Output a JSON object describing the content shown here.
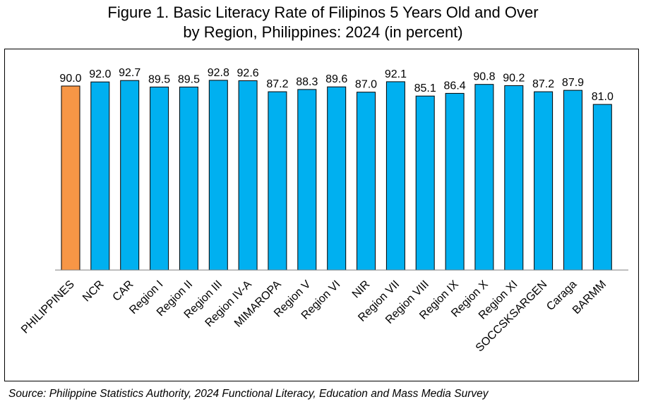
{
  "title_line1": "Figure 1. Basic Literacy Rate of Filipinos 5 Years Old and Over",
  "title_line2": "by Region, Philippines: 2024 (in percent)",
  "source": "Source: Philippine Statistics Authority, 2024 Functional Literacy, Education and Mass Media Survey",
  "colors": {
    "national": "#F79646",
    "region": "#00B0F0",
    "outline": "#000000"
  },
  "chart_data": {
    "type": "bar",
    "categories": [
      "PHILIPPINES",
      "NCR",
      "CAR",
      "Region I",
      "Region II",
      "Region III",
      "Region IV-A",
      "MIMAROPA",
      "Region V",
      "Region VI",
      "NIR",
      "Region VII",
      "Region VIII",
      "Region IX",
      "Region X",
      "Region XI",
      "SOCCSKSARGEN",
      "Caraga",
      "BARMM"
    ],
    "values": [
      90.0,
      92.0,
      92.7,
      89.5,
      89.5,
      92.8,
      92.6,
      87.2,
      88.3,
      89.6,
      87.0,
      92.1,
      85.1,
      86.4,
      90.8,
      90.2,
      87.2,
      87.9,
      81.0
    ],
    "data_labels": [
      "90.0",
      "92.0",
      "92.7",
      "89.5",
      "89.5",
      "92.8",
      "92.6",
      "87.2",
      "88.3",
      "89.6",
      "87.0",
      "92.1",
      "85.1",
      "86.4",
      "90.8",
      "90.2",
      "87.2",
      "87.9",
      "81.0"
    ],
    "ylim": [
      0,
      100
    ],
    "grid": false,
    "legend": "none",
    "highlight_category": "PHILIPPINES",
    "xlabel": "",
    "ylabel": ""
  }
}
